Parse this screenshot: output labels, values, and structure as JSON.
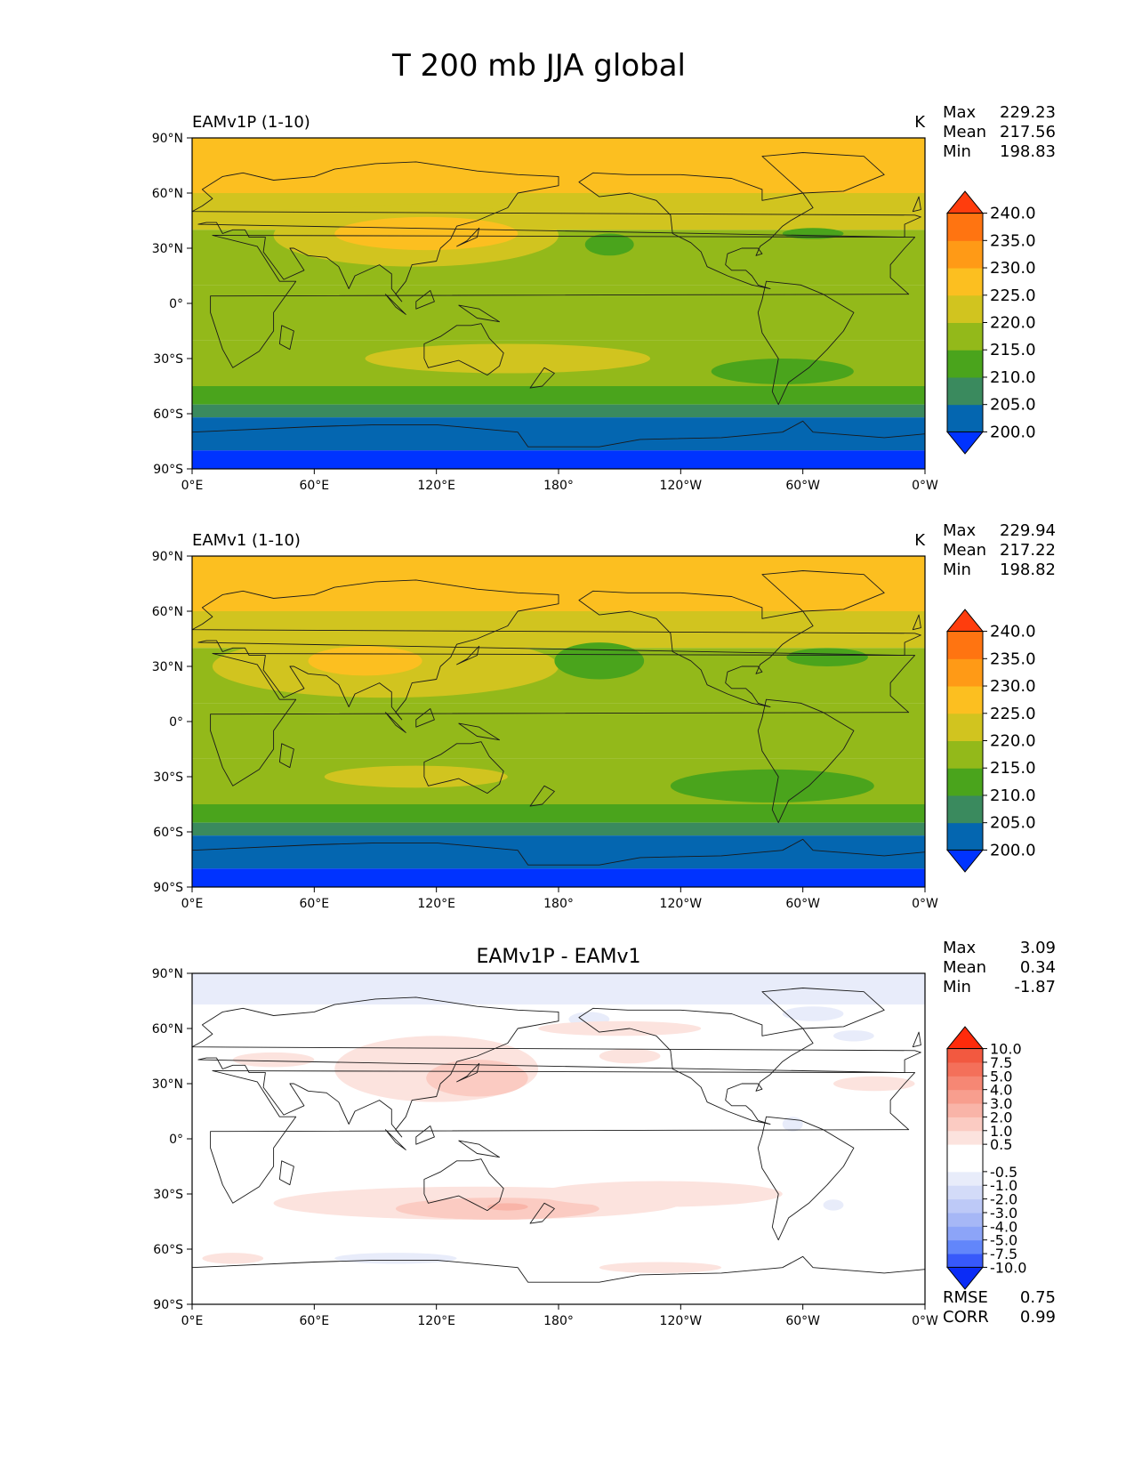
{
  "page": {
    "title": "T 200 mb JJA global"
  },
  "axes": {
    "lat_ticks": [
      "90°N",
      "60°N",
      "30°N",
      "0°",
      "30°S",
      "60°S",
      "90°S"
    ],
    "lon_ticks": [
      "0°E",
      "60°E",
      "120°E",
      "180°",
      "120°W",
      "60°W",
      "0°W"
    ]
  },
  "colors": {
    "abs_levels": [
      "#0033ff",
      "#0466b0",
      "#3a8a5e",
      "#4aa41c",
      "#93b91a",
      "#d1c41f",
      "#fcbf20",
      "#ff9a16",
      "#ff7411",
      "#ff3d0d"
    ],
    "diff_levels": [
      "#0b2cf6",
      "#3759fa",
      "#6286fa",
      "#8ca4f8",
      "#a6b7f6",
      "#bdc9f7",
      "#d3dbf8",
      "#e8ecfa",
      "#ffffff",
      "#ffffff",
      "#fce3de",
      "#fbcbc2",
      "#f9b4a8",
      "#f89e8e",
      "#f68774",
      "#f4705a",
      "#f25940",
      "#ff2b0b"
    ]
  },
  "chart_data": [
    {
      "type": "heatmap",
      "title": "EAMv1P (1-10)",
      "units": "K",
      "stats": [
        {
          "label": "Max",
          "value": "229.23"
        },
        {
          "label": "Mean",
          "value": "217.56"
        },
        {
          "label": "Min",
          "value": "198.83"
        }
      ],
      "colorbar_ticks": [
        "240.0",
        "235.0",
        "230.0",
        "225.0",
        "220.0",
        "215.0",
        "210.0",
        "205.0",
        "200.0"
      ],
      "lat_bands": [
        {
          "lat": [
            60,
            90
          ],
          "value": 227
        },
        {
          "lat": [
            40,
            60
          ],
          "value": 222
        },
        {
          "lat": [
            10,
            40
          ],
          "value": 217
        },
        {
          "lat": [
            -20,
            10
          ],
          "value": 217
        },
        {
          "lat": [
            -45,
            -20
          ],
          "value": 217
        },
        {
          "lat": [
            -55,
            -45
          ],
          "value": 212
        },
        {
          "lat": [
            -62,
            -55
          ],
          "value": 208
        },
        {
          "lat": [
            -80,
            -62
          ],
          "value": 203
        },
        {
          "lat": [
            -90,
            -80
          ],
          "value": 199
        }
      ],
      "features": [
        {
          "lon": 110,
          "lat": 37,
          "rlon": 70,
          "rlat": 17,
          "value": 222
        },
        {
          "lon": 115,
          "lat": 38,
          "rlon": 45,
          "rlat": 9,
          "value": 227
        },
        {
          "lon": 155,
          "lat": -30,
          "rlon": 70,
          "rlat": 8,
          "value": 222
        },
        {
          "lon": 205,
          "lat": 32,
          "rlon": 12,
          "rlat": 6,
          "value": 212
        },
        {
          "lon": 305,
          "lat": 38,
          "rlon": 15,
          "rlat": 3,
          "value": 212
        },
        {
          "lon": 290,
          "lat": -37,
          "rlon": 35,
          "rlat": 7,
          "value": 212
        }
      ]
    },
    {
      "type": "heatmap",
      "title": "EAMv1 (1-10)",
      "units": "K",
      "stats": [
        {
          "label": "Max",
          "value": "229.94"
        },
        {
          "label": "Mean",
          "value": "217.22"
        },
        {
          "label": "Min",
          "value": "198.82"
        }
      ],
      "colorbar_ticks": [
        "240.0",
        "235.0",
        "230.0",
        "225.0",
        "220.0",
        "215.0",
        "210.0",
        "205.0",
        "200.0"
      ],
      "lat_bands": [
        {
          "lat": [
            60,
            90
          ],
          "value": 227
        },
        {
          "lat": [
            40,
            60
          ],
          "value": 222
        },
        {
          "lat": [
            10,
            40
          ],
          "value": 217
        },
        {
          "lat": [
            -20,
            10
          ],
          "value": 217
        },
        {
          "lat": [
            -45,
            -20
          ],
          "value": 217
        },
        {
          "lat": [
            -55,
            -45
          ],
          "value": 212
        },
        {
          "lat": [
            -62,
            -55
          ],
          "value": 208
        },
        {
          "lat": [
            -80,
            -62
          ],
          "value": 203
        },
        {
          "lat": [
            -90,
            -80
          ],
          "value": 199
        }
      ],
      "features": [
        {
          "lon": 95,
          "lat": 30,
          "rlon": 85,
          "rlat": 17,
          "value": 222
        },
        {
          "lon": 85,
          "lat": 33,
          "rlon": 28,
          "rlat": 8,
          "value": 227
        },
        {
          "lon": 110,
          "lat": -30,
          "rlon": 45,
          "rlat": 6,
          "value": 222
        },
        {
          "lon": 200,
          "lat": 33,
          "rlon": 22,
          "rlat": 10,
          "value": 212
        },
        {
          "lon": 312,
          "lat": 35,
          "rlon": 20,
          "rlat": 5,
          "value": 212
        },
        {
          "lon": 285,
          "lat": -35,
          "rlon": 50,
          "rlat": 9,
          "value": 212
        }
      ]
    },
    {
      "type": "heatmap",
      "title": "EAMv1P - EAMv1",
      "units": "",
      "stats": [
        {
          "label": "Max",
          "value": "3.09"
        },
        {
          "label": "Mean",
          "value": "0.34"
        },
        {
          "label": "Min",
          "value": "-1.87"
        }
      ],
      "colorbar_ticks": [
        "10.0",
        "7.5",
        "5.0",
        "4.0",
        "3.0",
        "2.0",
        "1.0",
        "0.5",
        "-0.5",
        "-1.0",
        "-2.0",
        "-3.0",
        "-4.0",
        "-5.0",
        "-7.5",
        "-10.0"
      ],
      "bottom_stats": [
        {
          "label": "RMSE",
          "value": "0.75"
        },
        {
          "label": "CORR",
          "value": "0.99"
        }
      ],
      "lat_bands": [
        {
          "lat": [
            73,
            90
          ],
          "value": -0.7
        },
        {
          "lat": [
            -90,
            73
          ],
          "value": 0
        }
      ],
      "features": [
        {
          "lon": 120,
          "lat": 38,
          "rlon": 50,
          "rlat": 18,
          "value": 0.7
        },
        {
          "lon": 140,
          "lat": 33,
          "rlon": 25,
          "rlat": 10,
          "value": 1.3
        },
        {
          "lon": 140,
          "lat": -35,
          "rlon": 100,
          "rlat": 9,
          "value": 0.7
        },
        {
          "lon": 150,
          "lat": -38,
          "rlon": 50,
          "rlat": 6,
          "value": 1.3
        },
        {
          "lon": 155,
          "lat": -37,
          "rlon": 10,
          "rlat": 2,
          "value": 2.2
        },
        {
          "lon": 100,
          "lat": -65,
          "rlon": 30,
          "rlat": 3,
          "value": -0.7
        },
        {
          "lon": 195,
          "lat": 65,
          "rlon": 10,
          "rlat": 4,
          "value": -0.7
        },
        {
          "lon": 305,
          "lat": 68,
          "rlon": 15,
          "rlat": 4,
          "value": -0.7
        },
        {
          "lon": 325,
          "lat": 56,
          "rlon": 10,
          "rlat": 3,
          "value": -0.7
        },
        {
          "lon": 215,
          "lat": 45,
          "rlon": 15,
          "rlat": 4,
          "value": 0.7
        },
        {
          "lon": 335,
          "lat": 30,
          "rlon": 20,
          "rlat": 4,
          "value": 0.7
        },
        {
          "lon": 295,
          "lat": 8,
          "rlon": 5,
          "rlat": 4,
          "value": -0.7
        },
        {
          "lon": 315,
          "lat": -36,
          "rlon": 5,
          "rlat": 3,
          "value": -0.7
        },
        {
          "lon": 230,
          "lat": -30,
          "rlon": 60,
          "rlat": 7,
          "value": 0.7
        },
        {
          "lon": 210,
          "lat": 60,
          "rlon": 40,
          "rlat": 4,
          "value": 0.7
        },
        {
          "lon": 230,
          "lat": -70,
          "rlon": 30,
          "rlat": 3,
          "value": 0.7
        },
        {
          "lon": 40,
          "lat": 43,
          "rlon": 20,
          "rlat": 4,
          "value": 0.7
        },
        {
          "lon": 20,
          "lat": -65,
          "rlon": 15,
          "rlat": 3,
          "value": 0.7
        }
      ]
    }
  ]
}
